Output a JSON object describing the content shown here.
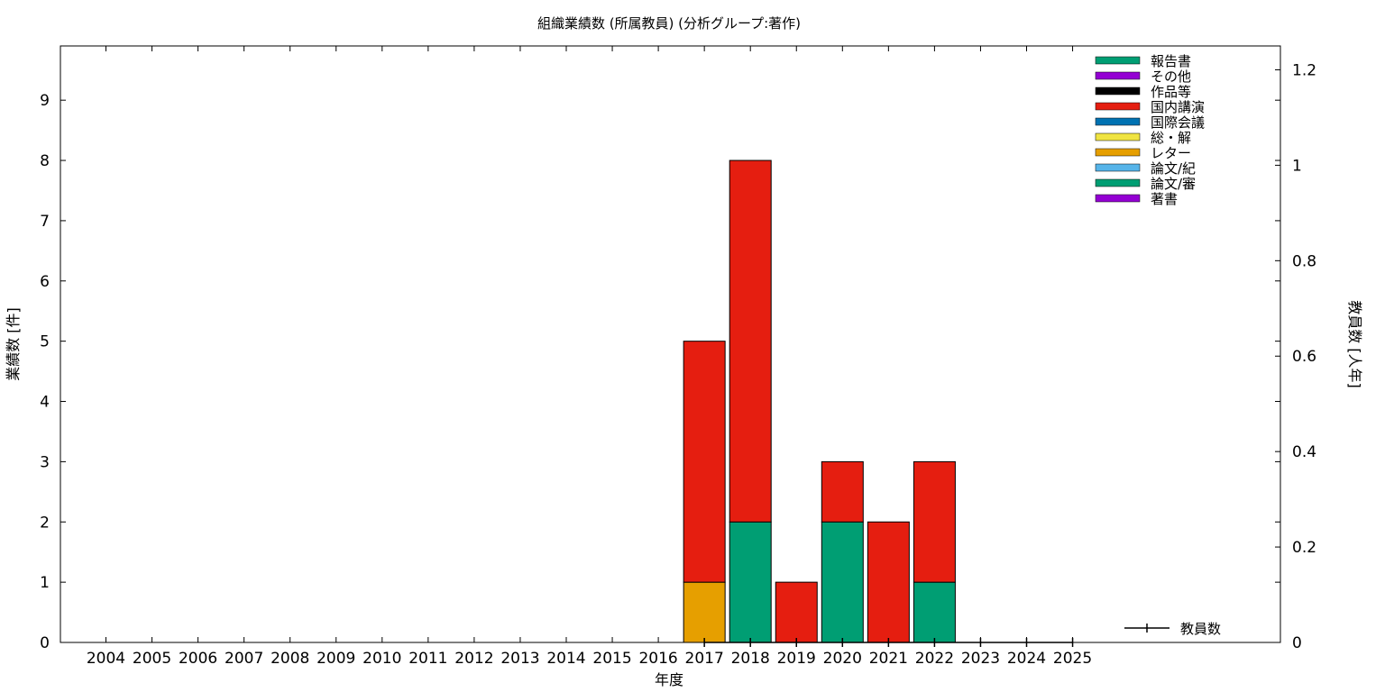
{
  "chart_data": {
    "type": "bar",
    "stacked": true,
    "title": "組織業績数 (所属教員) (分析グループ:著作)",
    "xlabel": "年度",
    "ylabel": "業績数 [件]",
    "y2label": "教員数 [人年]",
    "categories": [
      "2004",
      "2005",
      "2006",
      "2007",
      "2008",
      "2009",
      "2010",
      "2011",
      "2012",
      "2013",
      "2014",
      "2015",
      "2016",
      "2017",
      "2018",
      "2019",
      "2020",
      "2021",
      "2022",
      "2023",
      "2024",
      "2025"
    ],
    "ylim": [
      0,
      9.9
    ],
    "yticks": [
      0,
      1,
      2,
      3,
      4,
      5,
      6,
      7,
      8,
      9
    ],
    "y2lim": [
      0,
      1.25
    ],
    "y2ticks": [
      "0",
      "0.2",
      "0.4",
      "0.6",
      "0.8",
      "1",
      "1.2"
    ],
    "grid": false,
    "legend_position": "top-right",
    "series": [
      {
        "name": "報告書",
        "color": "#009e73",
        "values": [
          0,
          0,
          0,
          0,
          0,
          0,
          0,
          0,
          0,
          0,
          0,
          0,
          0,
          0,
          0,
          0,
          0,
          0,
          0,
          0,
          0,
          0
        ]
      },
      {
        "name": "その他",
        "color": "#9400d3",
        "values": [
          0,
          0,
          0,
          0,
          0,
          0,
          0,
          0,
          0,
          0,
          0,
          0,
          0,
          0,
          0,
          0,
          0,
          0,
          0,
          0,
          0,
          0
        ]
      },
      {
        "name": "作品等",
        "color": "#000000",
        "values": [
          0,
          0,
          0,
          0,
          0,
          0,
          0,
          0,
          0,
          0,
          0,
          0,
          0,
          0,
          0,
          0,
          0,
          0,
          0,
          0,
          0,
          0
        ]
      },
      {
        "name": "国内講演",
        "color": "#e51e10",
        "values": [
          0,
          0,
          0,
          0,
          0,
          0,
          0,
          0,
          0,
          0,
          0,
          0,
          0,
          4,
          6,
          1,
          1,
          2,
          2,
          0,
          0,
          0
        ]
      },
      {
        "name": "国際会議",
        "color": "#0072b2",
        "values": [
          0,
          0,
          0,
          0,
          0,
          0,
          0,
          0,
          0,
          0,
          0,
          0,
          0,
          0,
          0,
          0,
          0,
          0,
          0,
          0,
          0,
          0
        ]
      },
      {
        "name": "総・解",
        "color": "#f0e442",
        "values": [
          0,
          0,
          0,
          0,
          0,
          0,
          0,
          0,
          0,
          0,
          0,
          0,
          0,
          0,
          0,
          0,
          0,
          0,
          0,
          0,
          0,
          0
        ]
      },
      {
        "name": "レター",
        "color": "#e69f00",
        "values": [
          0,
          0,
          0,
          0,
          0,
          0,
          0,
          0,
          0,
          0,
          0,
          0,
          0,
          1,
          0,
          0,
          0,
          0,
          0,
          0,
          0,
          0
        ]
      },
      {
        "name": "論文/紀",
        "color": "#56b4e9",
        "values": [
          0,
          0,
          0,
          0,
          0,
          0,
          0,
          0,
          0,
          0,
          0,
          0,
          0,
          0,
          0,
          0,
          0,
          0,
          0,
          0,
          0,
          0
        ]
      },
      {
        "name": "論文/審",
        "color": "#009e73",
        "values": [
          0,
          0,
          0,
          0,
          0,
          0,
          0,
          0,
          0,
          0,
          0,
          0,
          0,
          0,
          2,
          0,
          2,
          0,
          1,
          0,
          0,
          0
        ]
      },
      {
        "name": "著書",
        "color": "#9400d3",
        "values": [
          0,
          0,
          0,
          0,
          0,
          0,
          0,
          0,
          0,
          0,
          0,
          0,
          0,
          0,
          0,
          0,
          0,
          0,
          0,
          0,
          0,
          0
        ]
      }
    ],
    "stack_order": [
      "レター",
      "論文/審",
      "国内講演"
    ],
    "line_series": {
      "name": "教員数",
      "color": "#000000",
      "axis": "y2",
      "x": [
        "2017",
        "2018",
        "2019",
        "2020",
        "2021",
        "2022",
        "2023",
        "2024",
        "2025"
      ],
      "values": [
        0,
        0,
        0,
        0,
        0,
        0,
        0,
        0,
        0
      ]
    }
  }
}
